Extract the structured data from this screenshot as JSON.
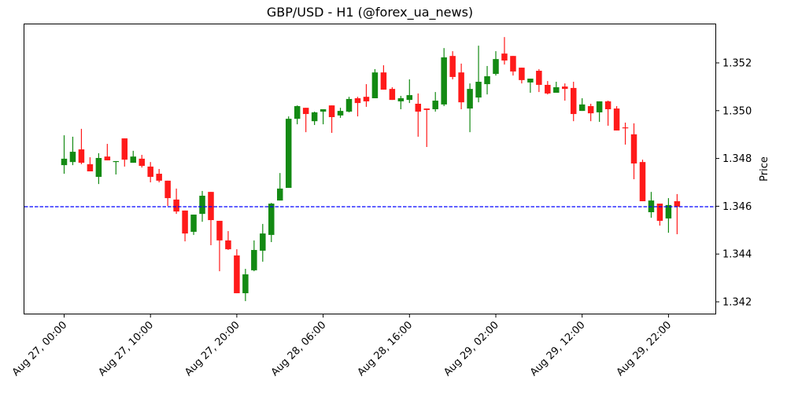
{
  "chart_data": {
    "type": "candlestick",
    "title": "GBP/USD - H1 (@forex_ua_news)",
    "xlabel": "",
    "ylabel": "Price",
    "y_axis_position": "right",
    "ylim": [
      1.3414,
      1.3536
    ],
    "yticks": [
      1.342,
      1.344,
      1.346,
      1.348,
      1.35,
      1.352
    ],
    "ytick_labels": [
      "1.342",
      "1.344",
      "1.346",
      "1.348",
      "1.350",
      "1.352"
    ],
    "xtick_labels": [
      "Aug 27, 00:00",
      "Aug 27, 10:00",
      "Aug 27, 20:00",
      "Aug 28, 06:00",
      "Aug 28, 16:00",
      "Aug 29, 02:00",
      "Aug 29, 12:00",
      "Aug 29, 22:00"
    ],
    "xtick_index": [
      0,
      10,
      20,
      30,
      40,
      50,
      60,
      70
    ],
    "grid": false,
    "legend": null,
    "reference_line": {
      "value": 1.34598,
      "style": "dashed",
      "color": "#0000ff",
      "meaning": "last close"
    },
    "colors": {
      "up": "#138a13",
      "down": "#ff1a1a"
    },
    "interval": "1 hour",
    "start": "Aug 27, 00:00",
    "ohlc_columns": [
      "open",
      "high",
      "low",
      "close"
    ],
    "ohlc": [
      [
        1.34772,
        1.34897,
        1.34736,
        1.34799
      ],
      [
        1.34785,
        1.34891,
        1.34772,
        1.34828
      ],
      [
        1.34838,
        1.34924,
        1.34776,
        1.34782
      ],
      [
        1.34776,
        1.34805,
        1.34746,
        1.34746
      ],
      [
        1.34723,
        1.34822,
        1.34693,
        1.34802
      ],
      [
        1.34808,
        1.34861,
        1.34792,
        1.34792
      ],
      [
        1.34785,
        1.34789,
        1.34733,
        1.34789
      ],
      [
        1.34884,
        1.34884,
        1.34766,
        1.34795
      ],
      [
        1.34782,
        1.34832,
        1.34782,
        1.34808
      ],
      [
        1.34799,
        1.34815,
        1.34762,
        1.34769
      ],
      [
        1.34766,
        1.34785,
        1.347,
        1.34723
      ],
      [
        1.34736,
        1.34756,
        1.347,
        1.34707
      ],
      [
        1.34707,
        1.34707,
        1.34601,
        1.34634
      ],
      [
        1.34628,
        1.34674,
        1.34568,
        1.34578
      ],
      [
        1.34582,
        1.34582,
        1.34453,
        1.34486
      ],
      [
        1.34493,
        1.34565,
        1.3448,
        1.34565
      ],
      [
        1.34568,
        1.34664,
        1.34535,
        1.34644
      ],
      [
        1.3466,
        1.3466,
        1.34437,
        1.34542
      ],
      [
        1.34539,
        1.34539,
        1.34328,
        1.34457
      ],
      [
        1.34457,
        1.34496,
        1.34417,
        1.3442
      ],
      [
        1.34394,
        1.3442,
        1.34236,
        1.34236
      ],
      [
        1.34236,
        1.34338,
        1.34203,
        1.34315
      ],
      [
        1.34332,
        1.34457,
        1.34328,
        1.34417
      ],
      [
        1.34414,
        1.34526,
        1.34368,
        1.34486
      ],
      [
        1.3448,
        1.34614,
        1.3445,
        1.34611
      ],
      [
        1.34624,
        1.34739,
        1.34624,
        1.34674
      ],
      [
        1.34677,
        1.34976,
        1.34677,
        1.34966
      ],
      [
        1.34966,
        1.35022,
        1.34943,
        1.35019
      ],
      [
        1.35012,
        1.35012,
        1.3491,
        1.34986
      ],
      [
        1.34956,
        1.34996,
        1.3494,
        1.34993
      ],
      [
        1.34996,
        1.35006,
        1.34943,
        1.35006
      ],
      [
        1.35022,
        1.35022,
        1.34907,
        1.34973
      ],
      [
        1.3498,
        1.35012,
        1.3497,
        1.34999
      ],
      [
        1.34996,
        1.35058,
        1.34993,
        1.35049
      ],
      [
        1.35052,
        1.35058,
        1.34976,
        1.35032
      ],
      [
        1.35058,
        1.35111,
        1.35016,
        1.35039
      ],
      [
        1.35052,
        1.35174,
        1.35052,
        1.3516
      ],
      [
        1.3516,
        1.3519,
        1.35088,
        1.35088
      ],
      [
        1.35091,
        1.35098,
        1.35045,
        1.35045
      ],
      [
        1.35039,
        1.35062,
        1.35006,
        1.35052
      ],
      [
        1.35045,
        1.35131,
        1.35032,
        1.35065
      ],
      [
        1.35029,
        1.35072,
        1.34891,
        1.34996
      ],
      [
        1.35009,
        1.35009,
        1.34848,
        1.35003
      ],
      [
        1.35006,
        1.35078,
        1.34996,
        1.35042
      ],
      [
        1.35026,
        1.35262,
        1.35019,
        1.35223
      ],
      [
        1.35229,
        1.35249,
        1.35131,
        1.35141
      ],
      [
        1.3516,
        1.35197,
        1.35006,
        1.35035
      ],
      [
        1.35009,
        1.35114,
        1.3491,
        1.35091
      ],
      [
        1.35055,
        1.35272,
        1.35035,
        1.35121
      ],
      [
        1.35111,
        1.35187,
        1.35068,
        1.35144
      ],
      [
        1.35154,
        1.35249,
        1.35147,
        1.35216
      ],
      [
        1.35239,
        1.35308,
        1.35193,
        1.3521
      ],
      [
        1.35229,
        1.35229,
        1.35147,
        1.35164
      ],
      [
        1.3518,
        1.3518,
        1.35114,
        1.35128
      ],
      [
        1.35118,
        1.35134,
        1.35075,
        1.35134
      ],
      [
        1.35167,
        1.35174,
        1.35078,
        1.35108
      ],
      [
        1.35108,
        1.35124,
        1.35068,
        1.35072
      ],
      [
        1.35075,
        1.35121,
        1.35075,
        1.35098
      ],
      [
        1.35101,
        1.35114,
        1.35042,
        1.35091
      ],
      [
        1.35095,
        1.35121,
        1.34956,
        1.34986
      ],
      [
        1.34999,
        1.35052,
        1.34999,
        1.35026
      ],
      [
        1.35019,
        1.35029,
        1.34956,
        1.34989
      ],
      [
        1.34993,
        1.35039,
        1.34953,
        1.35039
      ],
      [
        1.35039,
        1.35042,
        1.34937,
        1.35006
      ],
      [
        1.35009,
        1.35019,
        1.34917,
        1.34917
      ],
      [
        1.3493,
        1.3495,
        1.34858,
        1.34927
      ],
      [
        1.34901,
        1.34947,
        1.34713,
        1.34779
      ],
      [
        1.34785,
        1.34795,
        1.34621,
        1.34621
      ],
      [
        1.34575,
        1.3466,
        1.34552,
        1.34624
      ],
      [
        1.34611,
        1.34611,
        1.34519,
        1.34539
      ],
      [
        1.34549,
        1.34634,
        1.34489,
        1.34605
      ],
      [
        1.34621,
        1.34651,
        1.34483,
        1.34598
      ]
    ]
  }
}
